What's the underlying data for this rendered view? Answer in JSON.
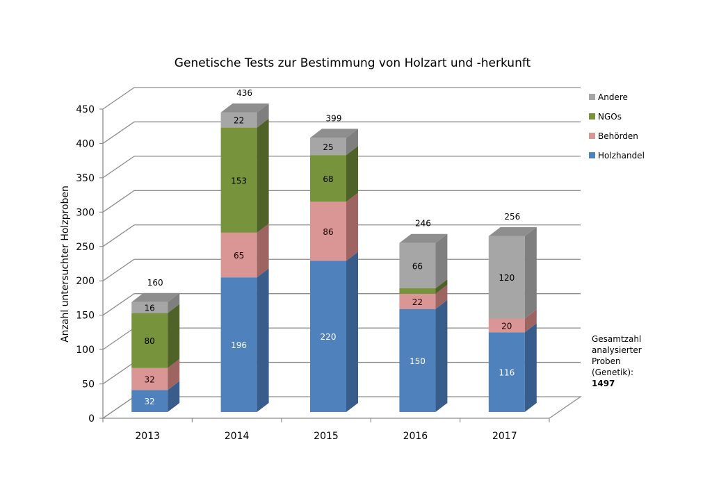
{
  "chart_data": {
    "type": "bar",
    "stacked": true,
    "three_d": true,
    "title": "Genetische Tests zur Bestimmung von Holzart und -herkunft",
    "xlabel": "",
    "ylabel": "Anzahl untersuchter Holzproben",
    "ylim": [
      0,
      450
    ],
    "yticks": [
      0,
      50,
      100,
      150,
      200,
      250,
      300,
      350,
      400,
      450
    ],
    "grid": true,
    "legend_position": "right",
    "categories": [
      "2013",
      "2014",
      "2015",
      "2016",
      "2017"
    ],
    "series": [
      {
        "name": "Holzhandel",
        "color": "#4F81BD",
        "side": "#385D8A",
        "label_color": "#FFFFFF",
        "values": [
          32,
          196,
          220,
          150,
          116
        ],
        "labels": [
          "32",
          "196",
          "220",
          "150",
          "116"
        ]
      },
      {
        "name": "Behörden",
        "color": "#D99694",
        "side": "#9E6462",
        "label_color": "#1a0000",
        "values": [
          32,
          65,
          86,
          22,
          20
        ],
        "labels": [
          "32",
          "65",
          "86",
          "22",
          "20"
        ]
      },
      {
        "name": "NGOs",
        "color": "#77933C",
        "side": "#4F6228",
        "label_color": "#000000",
        "values": [
          80,
          153,
          68,
          8,
          0
        ],
        "labels": [
          "80",
          "153",
          "68",
          "",
          ""
        ]
      },
      {
        "name": "Andere",
        "color": "#A6A6A6",
        "side": "#7F7F7F",
        "label_color": "#000000",
        "values": [
          16,
          22,
          25,
          66,
          120
        ],
        "labels": [
          "16",
          "22",
          "25",
          "66",
          "120"
        ]
      }
    ],
    "totals": [
      "160",
      "436",
      "399",
      "246",
      "256"
    ],
    "legend_order": [
      "Andere",
      "NGOs",
      "Behörden",
      "Holzhandel"
    ]
  },
  "annotation": {
    "lines": [
      "Gesamtzahl",
      "analysierter",
      "Proben",
      "(Genetik):"
    ],
    "total": "1497"
  }
}
